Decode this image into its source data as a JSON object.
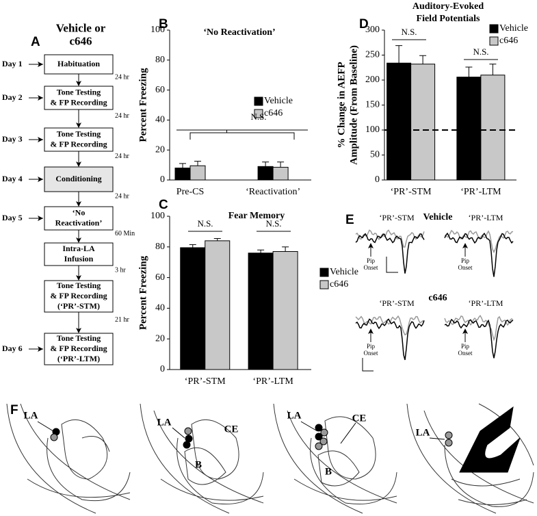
{
  "panel_labels": [
    "A",
    "B",
    "C",
    "D",
    "E",
    "F"
  ],
  "flowchart": {
    "title": [
      "Vehicle or",
      "c646"
    ],
    "days": [
      "Day 1",
      "Day 2",
      "Day 3",
      "Day 4",
      "Day 5",
      null,
      null,
      "Day 6"
    ],
    "steps": [
      [
        "Habituation"
      ],
      [
        "Tone Testing",
        "& FP Recording"
      ],
      [
        "Tone Testing",
        "& FP Recording"
      ],
      [
        "Conditioning"
      ],
      [
        "‘No",
        "Reactivation’"
      ],
      [
        "Intra-LA",
        "Infusion"
      ],
      [
        "Tone Testing",
        "& FP Recording",
        "(‘PR’-STM)"
      ],
      [
        "Tone Testing",
        "& FP Recording",
        "(‘PR’-LTM)"
      ]
    ],
    "intervals": [
      "24 hr",
      "24 hr",
      "24 hr",
      "24 hr",
      "60 Min",
      "3 hr",
      "21 hr"
    ]
  },
  "chart_data": [
    {
      "type": "bar",
      "title": "‘No Reactivation’",
      "ylabel": "Percent Freezing",
      "categories": [
        "Pre-CS",
        "‘Reactivation’"
      ],
      "series": [
        {
          "name": "Vehicle",
          "color": "#000000",
          "values": [
            8,
            9
          ],
          "errors": [
            3,
            3
          ]
        },
        {
          "name": "c646",
          "color": "#c8c8c8",
          "values": [
            9.5,
            8.5
          ],
          "errors": [
            3,
            3.5
          ]
        }
      ],
      "ylim": [
        0,
        100
      ],
      "yticks": [
        0,
        20,
        40,
        60,
        80,
        100
      ],
      "annotations": [
        "N.S."
      ]
    },
    {
      "type": "bar",
      "title": "Fear Memory",
      "ylabel": "Percent Freezing",
      "categories": [
        "‘PR’-STM",
        "‘PR’-LTM"
      ],
      "series": [
        {
          "name": "Vehicle",
          "color": "#000000",
          "values": [
            79.5,
            76
          ],
          "errors": [
            2,
            2
          ]
        },
        {
          "name": "c646",
          "color": "#c8c8c8",
          "values": [
            84,
            77
          ],
          "errors": [
            1.5,
            3
          ]
        }
      ],
      "ylim": [
        0,
        100
      ],
      "yticks": [
        0,
        20,
        40,
        60,
        80,
        100
      ],
      "annotations": [
        "N.S.",
        "N.S."
      ]
    },
    {
      "type": "bar",
      "title": [
        "Auditory-Evoked",
        "Field Potentials"
      ],
      "ylabel": [
        "% Change in AEFP",
        "Amplitude (From Baseline)"
      ],
      "categories": [
        "‘PR’-STM",
        "‘PR’-LTM"
      ],
      "series": [
        {
          "name": "Vehicle",
          "color": "#000000",
          "values": [
            234,
            206
          ],
          "errors": [
            35,
            20
          ]
        },
        {
          "name": "c646",
          "color": "#c8c8c8",
          "values": [
            232,
            210
          ],
          "errors": [
            17,
            22
          ]
        }
      ],
      "ylim": [
        0,
        300
      ],
      "yticks": [
        0,
        50,
        100,
        150,
        200,
        250,
        300
      ],
      "reference_line": 100,
      "annotations": [
        "N.S.",
        "N.S."
      ]
    }
  ],
  "traces": {
    "groups": [
      "Vehicle",
      "c646"
    ],
    "conditions": [
      "‘PR’-STM",
      "‘PR’-LTM"
    ],
    "onset": [
      "Pip",
      "Onset"
    ]
  },
  "anatomy": {
    "labels": [
      [
        "LA"
      ],
      [
        "LA",
        "CE",
        "B"
      ],
      [
        "LA",
        "CE",
        "B"
      ],
      [
        "LA"
      ]
    ]
  }
}
